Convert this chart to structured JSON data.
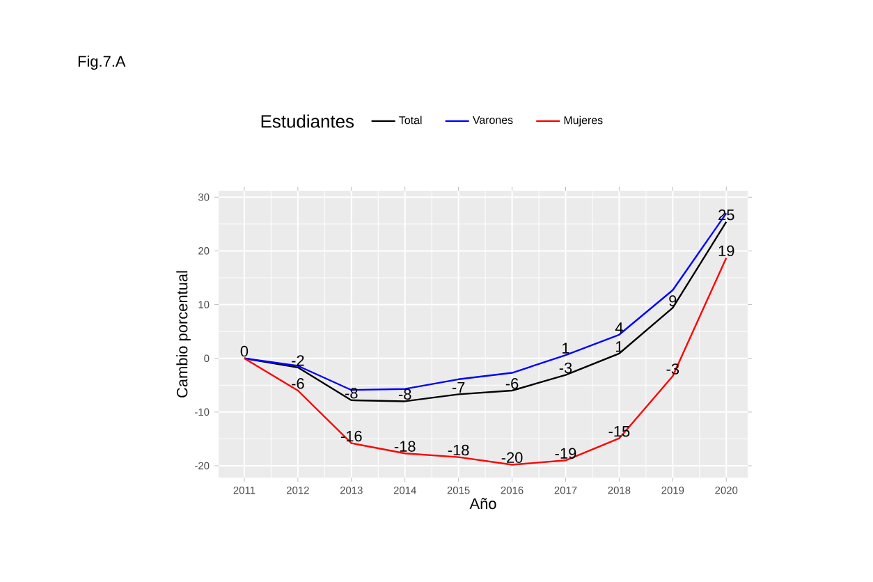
{
  "chart_data": {
    "type": "line",
    "title": "Fig.7.A",
    "xlabel": "Año",
    "ylabel": "Cambio porcentual",
    "legend_title": "Estudiantes",
    "categories": [
      "2011",
      "2012",
      "2013",
      "2014",
      "2015",
      "2016",
      "2017",
      "2018",
      "2019",
      "2020"
    ],
    "series": [
      {
        "name": "Total",
        "color": "#000000",
        "values": [
          0,
          -1.7,
          -7.8,
          -8.0,
          -6.7,
          -6.0,
          -3.1,
          0.9,
          9.4,
          25.4
        ],
        "value_labels": [
          "0",
          "-2",
          "-8",
          "-8",
          "-7",
          "-6",
          "-3",
          "1",
          "9",
          "25"
        ]
      },
      {
        "name": "Varones",
        "color": "#0000ff",
        "values": [
          0,
          -1.4,
          -5.9,
          -5.7,
          -3.9,
          -2.7,
          0.6,
          4.4,
          12.7,
          27.0
        ],
        "value_labels": [
          null,
          null,
          null,
          null,
          null,
          null,
          "1",
          "4",
          null,
          null
        ]
      },
      {
        "name": "Mujeres",
        "color": "#ff0000",
        "values": [
          0,
          -6.0,
          -15.8,
          -17.7,
          -18.4,
          -19.8,
          -19.0,
          -14.9,
          -3.3,
          18.7
        ],
        "value_labels": [
          null,
          "-6",
          "-16",
          "-18",
          "-18",
          "-20",
          "-19",
          "-15",
          "-3",
          "19"
        ]
      }
    ],
    "ylim": [
      -22.2,
      31.2
    ],
    "yticks": [
      -20,
      -10,
      0,
      10,
      20,
      30
    ],
    "grid": true,
    "legend": "top",
    "line_style": "solid",
    "marker": "none"
  }
}
